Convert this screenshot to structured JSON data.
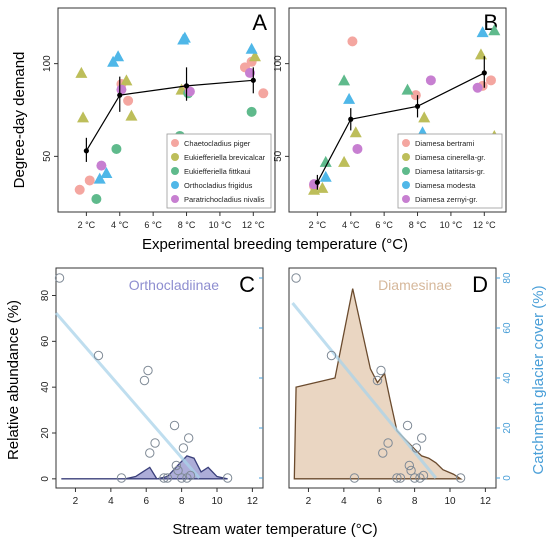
{
  "figure": {
    "y_label_top": "Degree-day demand",
    "x_label_top": "Experimental breeding temperature (°C)",
    "y_label_bottom_left": "Relative abundance (%)",
    "y_label_bottom_right": "Catchment glacier cover (%)",
    "x_label_bottom": "Stream water temperature (°C)"
  },
  "chart_data": [
    {
      "panel": "A",
      "type": "scatter",
      "x_ticks": [
        "2 °C",
        "4 °C",
        "6 °C",
        "8 °C",
        "10 °C",
        "12 °C"
      ],
      "x_tick_values": [
        2,
        4,
        6,
        8,
        10,
        12
      ],
      "y_ticks": [
        50,
        100
      ],
      "xlim": [
        0.3,
        13.3
      ],
      "ylim": [
        20,
        130
      ],
      "grid": false,
      "legend_position": "bottom-right",
      "series": [
        {
          "name": "Chaetocladius piger",
          "color": "#f4a6a0",
          "marker": "circle",
          "points": [
            [
              1.6,
              32
            ],
            [
              2.2,
              37
            ],
            [
              4.1,
              89
            ],
            [
              4.5,
              80
            ],
            [
              7.9,
              86
            ],
            [
              11.5,
              98
            ],
            [
              11.9,
              101
            ],
            [
              12.6,
              84
            ]
          ]
        },
        {
          "name": "Eukiefferiella brevicalcar",
          "color": "#bdbe5a",
          "marker": "triangle",
          "points": [
            [
              1.7,
              95
            ],
            [
              1.8,
              71
            ],
            [
              4.4,
              91
            ],
            [
              4.7,
              72
            ],
            [
              7.7,
              86
            ],
            [
              11.6,
              56
            ],
            [
              12.1,
              104
            ]
          ]
        },
        {
          "name": "Eukiefferiella fittkaui",
          "color": "#5fba8c",
          "marker": "circle",
          "points": [
            [
              2.6,
              27
            ],
            [
              3.8,
              54
            ],
            [
              7.6,
              61
            ],
            [
              8.1,
              84
            ],
            [
              11.9,
              74
            ]
          ]
        },
        {
          "name": "Orthocladius frigidus",
          "color": "#4fb7e8",
          "marker": "triangle",
          "points": [
            [
              2.8,
              38
            ],
            [
              3.2,
              41
            ],
            [
              3.6,
              101
            ],
            [
              3.9,
              104
            ],
            [
              7.8,
              113
            ],
            [
              7.9,
              114
            ],
            [
              11.9,
              108
            ]
          ]
        },
        {
          "name": "Paratrichocladius nivalis",
          "color": "#c77fd1",
          "marker": "circle",
          "points": [
            [
              2.9,
              45
            ],
            [
              4.1,
              86
            ],
            [
              8.2,
              85
            ],
            [
              11.8,
              95
            ]
          ]
        }
      ],
      "mean_line": {
        "x": [
          2,
          4,
          8,
          12
        ],
        "y": [
          53,
          83,
          88,
          91
        ],
        "err_low": [
          47,
          74,
          80,
          84
        ],
        "err_high": [
          60,
          93,
          98,
          98
        ]
      }
    },
    {
      "panel": "B",
      "type": "scatter",
      "x_ticks": [
        "2 °C",
        "4 °C",
        "6 °C",
        "8 °C",
        "10 °C",
        "12 °C"
      ],
      "x_tick_values": [
        2,
        4,
        6,
        8,
        10,
        12
      ],
      "y_ticks": [
        50,
        100
      ],
      "xlim": [
        0.3,
        13.3
      ],
      "ylim": [
        20,
        130
      ],
      "grid": false,
      "legend_position": "bottom-right",
      "series": [
        {
          "name": "Diamesa bertrami",
          "color": "#f4a6a0",
          "marker": "circle",
          "points": [
            [
              1.8,
              34
            ],
            [
              4.1,
              112
            ],
            [
              7.9,
              83
            ],
            [
              11.9,
              88
            ],
            [
              12.4,
              91
            ]
          ]
        },
        {
          "name": "Diamesa cinerella-gr.",
          "color": "#bdbe5a",
          "marker": "triangle",
          "points": [
            [
              1.8,
              32
            ],
            [
              2.3,
              33
            ],
            [
              3.6,
              47
            ],
            [
              4.3,
              63
            ],
            [
              7.7,
              58
            ],
            [
              8.4,
              71
            ],
            [
              11.8,
              105
            ],
            [
              12.6,
              61
            ]
          ]
        },
        {
          "name": "Diamesa latitarsis-gr.",
          "color": "#5fba8c",
          "marker": "triangle",
          "points": [
            [
              2.5,
              47
            ],
            [
              3.6,
              91
            ],
            [
              7.4,
              86
            ],
            [
              12.6,
              118
            ]
          ]
        },
        {
          "name": "Diamesa modesta",
          "color": "#4fb7e8",
          "marker": "triangle",
          "points": [
            [
              2.5,
              39
            ],
            [
              3.9,
              81
            ],
            [
              8.3,
              63
            ],
            [
              11.9,
              117
            ]
          ]
        },
        {
          "name": "Diamesa zernyi-gr.",
          "color": "#c77fd1",
          "marker": "circle",
          "points": [
            [
              1.8,
              35
            ],
            [
              4.4,
              54
            ],
            [
              8.8,
              91
            ],
            [
              11.6,
              87
            ]
          ]
        }
      ],
      "mean_line": {
        "x": [
          2,
          4,
          8,
          12
        ],
        "y": [
          36,
          70,
          77,
          95
        ],
        "err_low": [
          32,
          64,
          71,
          87
        ],
        "err_high": [
          40,
          76,
          83,
          104
        ]
      }
    },
    {
      "panel": "C",
      "type": "area",
      "title": "Orthocladiinae",
      "x_ticks": [
        2,
        4,
        6,
        8,
        10,
        12
      ],
      "y_ticks": [
        0,
        20,
        40,
        60,
        80
      ],
      "xlim": [
        0.9,
        12.6
      ],
      "ylim": [
        -4,
        92
      ],
      "right_ylim": [
        -4,
        84
      ],
      "area_color": "#9f9fd1",
      "outline_color": "#3a3f7a",
      "area": {
        "x": [
          1.2,
          4.8,
          5.4,
          5.8,
          6.2,
          6.6,
          7.2,
          7.8,
          8.3,
          8.7,
          9.1,
          9.5,
          10.0,
          10.6
        ],
        "y": [
          0,
          0,
          1,
          3,
          5,
          0,
          1,
          6,
          10,
          9,
          3,
          5,
          1,
          0
        ]
      },
      "points": [
        [
          1.1,
          80
        ],
        [
          3.3,
          49
        ],
        [
          4.6,
          0
        ],
        [
          5.9,
          39
        ],
        [
          6.1,
          43
        ],
        [
          6.2,
          10
        ],
        [
          6.5,
          14
        ],
        [
          7.0,
          0
        ],
        [
          7.2,
          0
        ],
        [
          7.6,
          21
        ],
        [
          7.7,
          5
        ],
        [
          7.8,
          3
        ],
        [
          8.0,
          0
        ],
        [
          8.1,
          12
        ],
        [
          8.3,
          0
        ],
        [
          8.4,
          16
        ],
        [
          8.5,
          1
        ],
        [
          10.6,
          0
        ]
      ],
      "trend": {
        "x": [
          0.9,
          9.0
        ],
        "y": [
          66,
          0
        ]
      }
    },
    {
      "panel": "D",
      "type": "area",
      "title": "Diamesinae",
      "x_ticks": [
        2,
        4,
        6,
        8,
        10,
        12
      ],
      "y_ticks": [
        0,
        20,
        40,
        60,
        80
      ],
      "xlim": [
        0.9,
        12.6
      ],
      "ylim": [
        -4,
        92
      ],
      "right_ylim": [
        -4,
        84
      ],
      "area_color": "#e6cfb7",
      "outline_color": "#6b4b2e",
      "area": {
        "x": [
          1.2,
          1.3,
          3.5,
          4.5,
          5.5,
          5.9,
          6.3,
          6.6,
          7.0,
          7.5,
          8.0,
          8.4,
          8.8,
          9.2,
          9.6,
          10.2,
          10.6
        ],
        "y": [
          0,
          40,
          44,
          83,
          48,
          42,
          46,
          35,
          21,
          17,
          13,
          10,
          9,
          7,
          4,
          2,
          0
        ]
      },
      "points": [
        [
          1.3,
          80
        ],
        [
          3.3,
          49
        ],
        [
          4.6,
          0
        ],
        [
          5.9,
          39
        ],
        [
          6.1,
          43
        ],
        [
          6.2,
          10
        ],
        [
          6.5,
          14
        ],
        [
          7.0,
          0
        ],
        [
          7.2,
          0
        ],
        [
          7.6,
          21
        ],
        [
          7.7,
          5
        ],
        [
          7.8,
          3
        ],
        [
          8.0,
          0
        ],
        [
          8.1,
          12
        ],
        [
          8.3,
          0
        ],
        [
          8.4,
          16
        ],
        [
          8.5,
          1
        ],
        [
          10.6,
          0
        ]
      ],
      "trend": {
        "x": [
          1.1,
          9.2
        ],
        "y": [
          70,
          0
        ]
      }
    }
  ]
}
